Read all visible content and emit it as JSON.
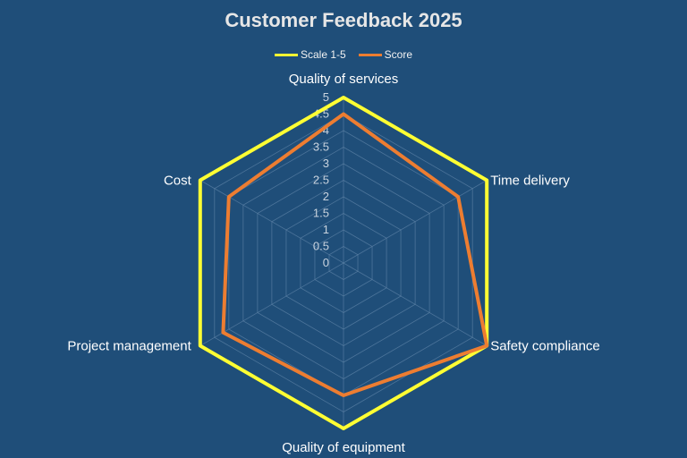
{
  "chart_data": {
    "type": "radar",
    "title": "Customer Feedback 2025",
    "categories": [
      "Quality of services",
      "Time delivery",
      "Safety compliance",
      "Quality of equipment",
      "Project management",
      "Cost"
    ],
    "series": [
      {
        "name": "Scale 1-5",
        "values": [
          5,
          5,
          5,
          5,
          5,
          5
        ],
        "color": "#ffff33"
      },
      {
        "name": "Score",
        "values": [
          4.5,
          4.0,
          5.0,
          4.0,
          4.2,
          4.0
        ],
        "color": "#ed7d31"
      }
    ],
    "rlim": [
      0,
      5
    ],
    "ticks": [
      "0",
      "0.5",
      "1",
      "1.5",
      "2",
      "2.5",
      "3",
      "3.5",
      "4",
      "4.5",
      "5"
    ],
    "grid": true,
    "legend_position": "top",
    "background": "#1f4e79",
    "grid_color": "#5f84a8"
  }
}
